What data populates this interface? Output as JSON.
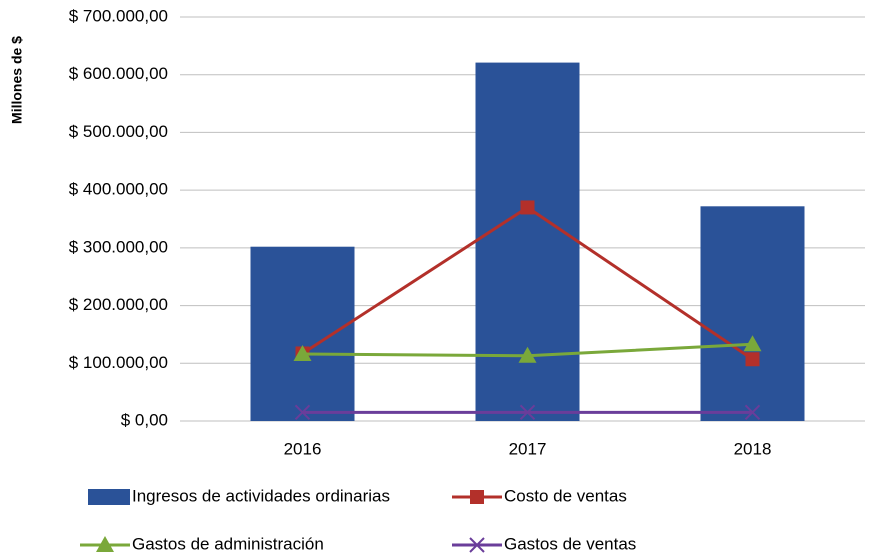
{
  "chart_data": {
    "type": "bar",
    "y_label": "Millones de $",
    "categories": [
      "2016",
      "2017",
      "2018"
    ],
    "series": [
      {
        "name": "Ingresos de actividades ordinarias",
        "type": "bar",
        "color": "#2a5298",
        "values": [
          302000,
          621000,
          372000
        ]
      },
      {
        "name": "Costo de ventas",
        "type": "line",
        "marker": "square",
        "color": "#b3302a",
        "values": [
          117000,
          370000,
          107000
        ]
      },
      {
        "name": "Gastos de administración",
        "type": "line",
        "marker": "triangle",
        "color": "#7aa83a",
        "values": [
          116000,
          113000,
          133000
        ]
      },
      {
        "name": "Gastos de ventas",
        "type": "line",
        "marker": "x",
        "color": "#6a3d9a",
        "values": [
          15000,
          15000,
          15000
        ]
      }
    ],
    "ylim": [
      0,
      700000
    ],
    "yticks": [
      {
        "value": 0,
        "label": "$ 0,00"
      },
      {
        "value": 100000,
        "label": "$ 100.000,00"
      },
      {
        "value": 200000,
        "label": "$ 200.000,00"
      },
      {
        "value": 300000,
        "label": "$ 300.000,00"
      },
      {
        "value": 400000,
        "label": "$ 400.000,00"
      },
      {
        "value": 500000,
        "label": "$ 500.000,00"
      },
      {
        "value": 600000,
        "label": "$ 600.000,00"
      },
      {
        "value": 700000,
        "label": "$ 700.000,00"
      }
    ],
    "grid": true
  }
}
